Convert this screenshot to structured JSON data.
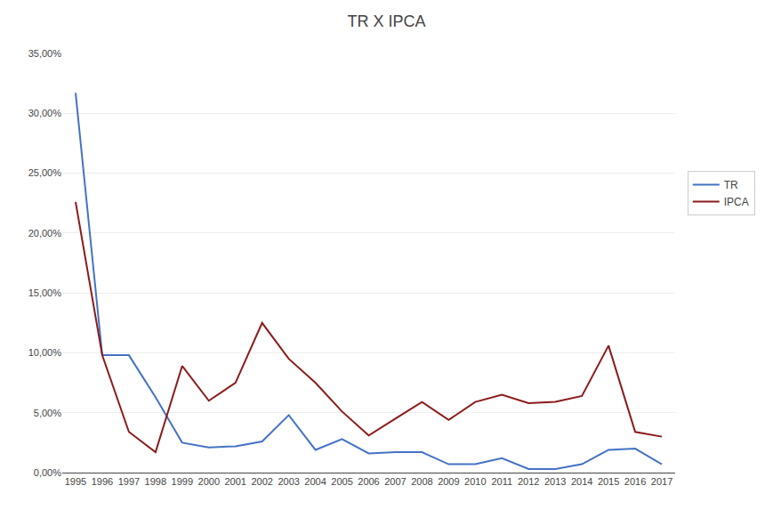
{
  "chart_data": {
    "type": "line",
    "title": "TR X IPCA",
    "x": [
      1995,
      1996,
      1997,
      1998,
      1999,
      2000,
      2001,
      2002,
      2003,
      2004,
      2005,
      2006,
      2007,
      2008,
      2009,
      2010,
      2011,
      2012,
      2013,
      2014,
      2015,
      2016,
      2017
    ],
    "series": [
      {
        "name": "TR",
        "color": "#4472C4",
        "values": [
          0.317,
          0.098,
          0.098,
          0.063,
          0.025,
          0.021,
          0.022,
          0.026,
          0.048,
          0.019,
          0.028,
          0.016,
          0.017,
          0.017,
          0.007,
          0.007,
          0.012,
          0.003,
          0.003,
          0.007,
          0.019,
          0.02,
          0.007
        ]
      },
      {
        "name": "IPCA",
        "color": "#8B1A1A",
        "values": [
          0.226,
          0.098,
          0.034,
          0.017,
          0.089,
          0.06,
          0.075,
          0.125,
          0.095,
          0.075,
          0.051,
          0.031,
          0.045,
          0.059,
          0.044,
          0.059,
          0.065,
          0.058,
          0.059,
          0.064,
          0.106,
          0.034,
          0.03
        ]
      }
    ],
    "xlim": [
      1994.5,
      2017.5
    ],
    "xticks": [
      1995,
      1996,
      1997,
      1998,
      1999,
      2000,
      2001,
      2002,
      2003,
      2004,
      2005,
      2006,
      2007,
      2008,
      2009,
      2010,
      2011,
      2012,
      2013,
      2014,
      2015,
      2016,
      2017
    ],
    "ylim": [
      0,
      0.35
    ],
    "yticks": [
      {
        "value": 0.0,
        "label": "0,00%"
      },
      {
        "value": 0.05,
        "label": "5,00%"
      },
      {
        "value": 0.1,
        "label": "10,00%"
      },
      {
        "value": 0.15,
        "label": "15,00%"
      },
      {
        "value": 0.2,
        "label": "20,00%"
      },
      {
        "value": 0.25,
        "label": "25,00%"
      },
      {
        "value": 0.3,
        "label": "30,00%"
      },
      {
        "value": 0.35,
        "label": "35,00%"
      }
    ],
    "grid": "y",
    "legend": "right"
  }
}
